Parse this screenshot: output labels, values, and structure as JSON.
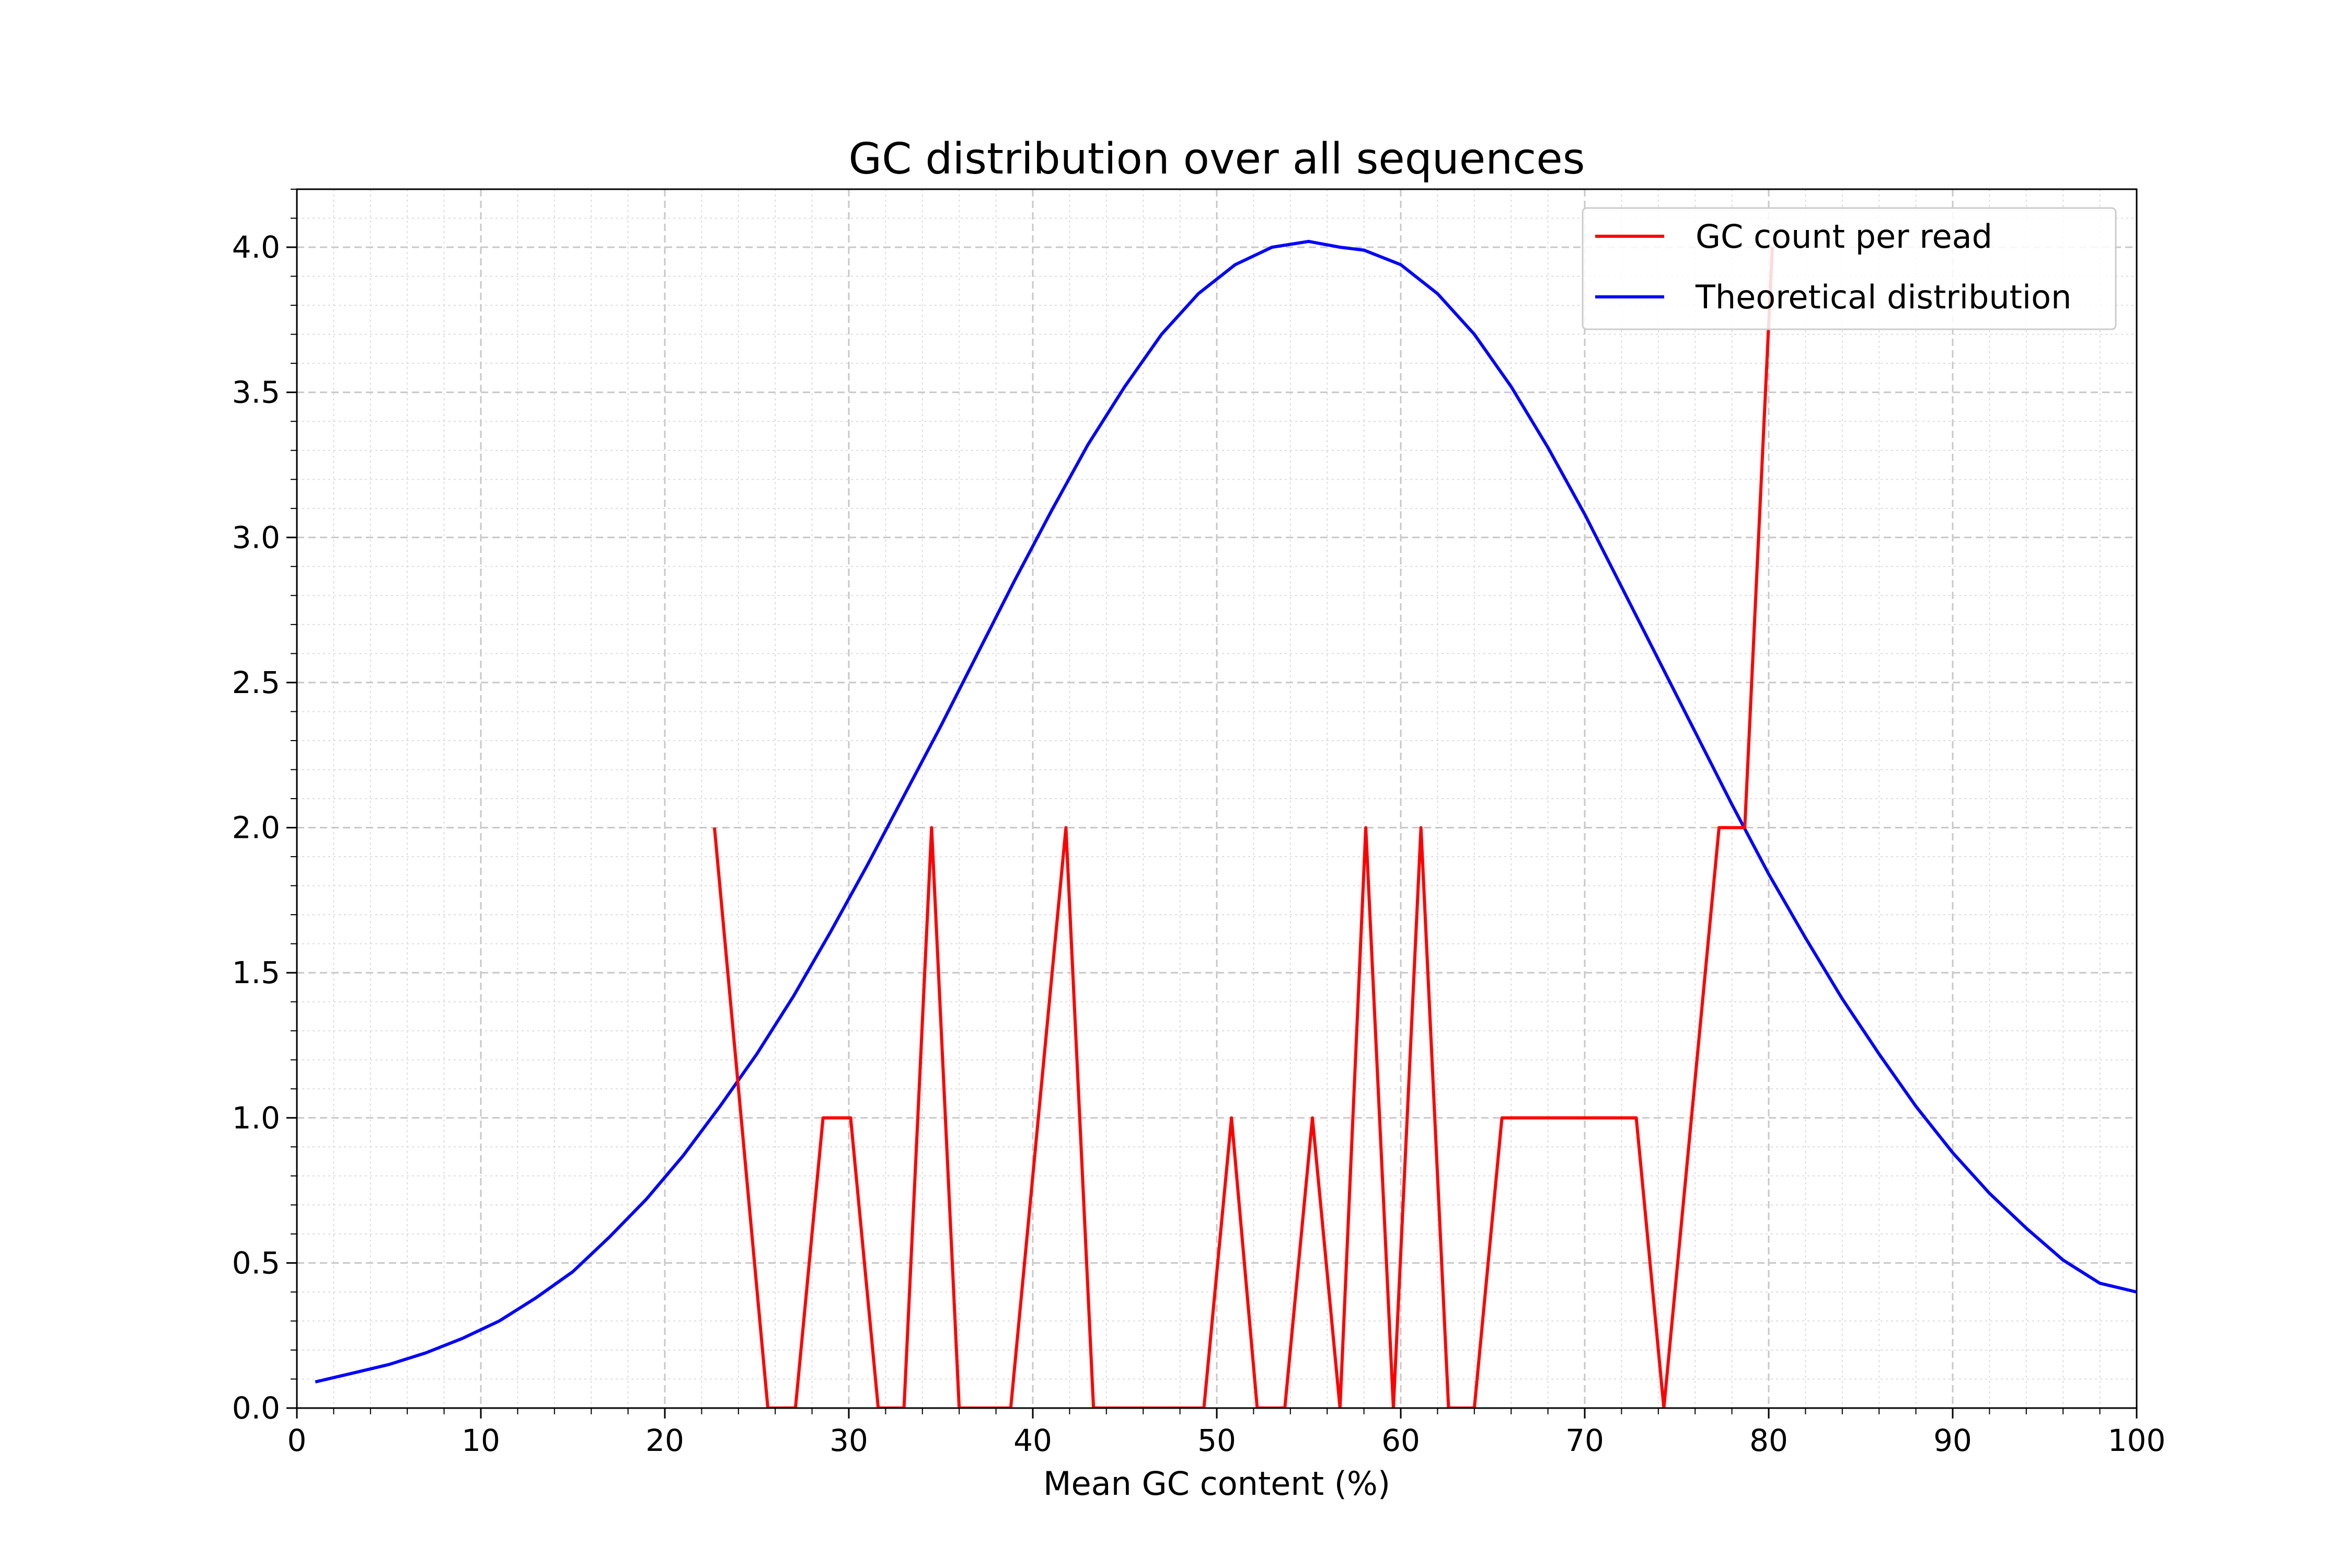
{
  "chart_data": {
    "type": "line",
    "title": "GC distribution over all sequences",
    "xlabel": "Mean GC content (%)",
    "ylabel": "",
    "xlim": [
      0,
      100
    ],
    "ylim": [
      0,
      4.2
    ],
    "xticks": [
      0,
      10,
      20,
      30,
      40,
      50,
      60,
      70,
      80,
      90,
      100
    ],
    "yticks": [
      "0.0",
      "0.5",
      "1.0",
      "1.5",
      "2.0",
      "2.5",
      "3.0",
      "3.5",
      "4.0"
    ],
    "grid": true,
    "legend_position": "top-right",
    "series": [
      {
        "name": "GC count per read",
        "color": "#ff0000",
        "x": [
          22.7,
          25.6,
          27.1,
          28.6,
          30.1,
          31.6,
          33.0,
          34.5,
          36.0,
          38.8,
          41.8,
          43.3,
          49.3,
          50.8,
          52.2,
          53.7,
          55.2,
          56.7,
          58.1,
          59.6,
          61.1,
          62.6,
          64.0,
          65.5,
          72.8,
          74.3,
          77.3,
          78.7,
          80.2
        ],
        "y": [
          2,
          0,
          0,
          1,
          1,
          0,
          0,
          2,
          0,
          0,
          2,
          0,
          0,
          1,
          0,
          0,
          1,
          0,
          2,
          0,
          2,
          0,
          0,
          1,
          1,
          0,
          2,
          2,
          4
        ]
      },
      {
        "name": "Theoretical distribution",
        "color": "#0000ff",
        "x": [
          1,
          3,
          5,
          7,
          9,
          11,
          13,
          15,
          17,
          19,
          21,
          23,
          25,
          27,
          29,
          31,
          33,
          35,
          37,
          39,
          41,
          43,
          45,
          47,
          49,
          51,
          53,
          55,
          56.7,
          58,
          60,
          62,
          64,
          66,
          68,
          70,
          72,
          74,
          76,
          78,
          80,
          82,
          84,
          86,
          88,
          90,
          92,
          94,
          96,
          98,
          100
        ],
        "y": [
          0.09,
          0.12,
          0.15,
          0.19,
          0.24,
          0.3,
          0.38,
          0.47,
          0.59,
          0.72,
          0.87,
          1.04,
          1.22,
          1.42,
          1.64,
          1.87,
          2.11,
          2.35,
          2.6,
          2.85,
          3.09,
          3.32,
          3.52,
          3.7,
          3.84,
          3.94,
          4.0,
          4.02,
          4.0,
          3.99,
          3.94,
          3.84,
          3.7,
          3.52,
          3.31,
          3.08,
          2.83,
          2.58,
          2.33,
          2.08,
          1.84,
          1.62,
          1.41,
          1.22,
          1.04,
          0.88,
          0.74,
          0.62,
          0.51,
          0.43,
          0.4
        ]
      }
    ]
  }
}
